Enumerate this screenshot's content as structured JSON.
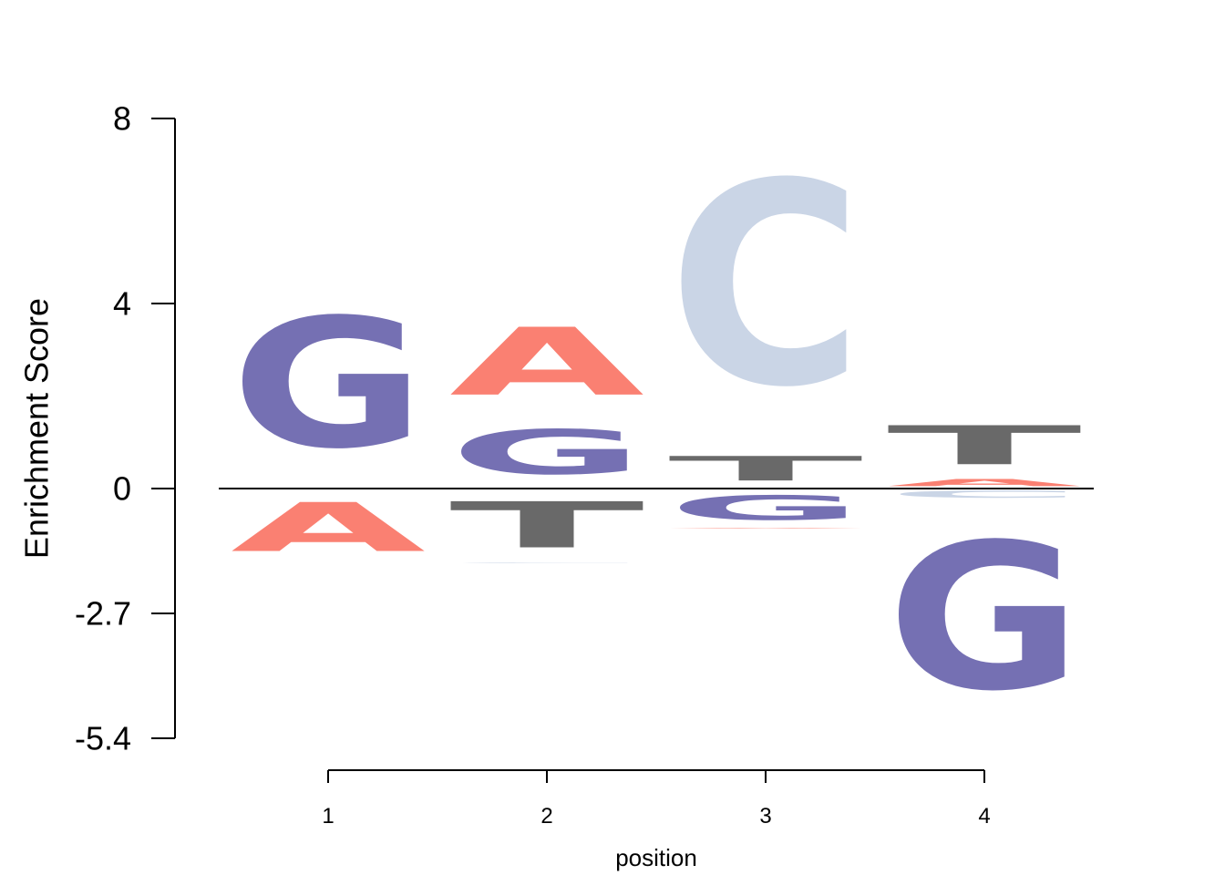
{
  "chart_data": {
    "type": "sequence-logo",
    "xlabel": "position",
    "ylabel": "Enrichment Score",
    "x_ticks": [
      "1",
      "2",
      "3",
      "4"
    ],
    "y_ticks": [
      {
        "value": 8,
        "label": "8"
      },
      {
        "value": 4,
        "label": "4"
      },
      {
        "value": 0,
        "label": "0"
      },
      {
        "value": -2.7,
        "label": "-2.7"
      },
      {
        "value": -5.4,
        "label": "-5.4"
      }
    ],
    "ylim": [
      -5.4,
      8
    ],
    "colors": {
      "A": "#FA8072",
      "C": "#CAD5E6",
      "G": "#7570B3",
      "T": "#696969"
    },
    "positions": [
      {
        "position": 1,
        "letters": [
          {
            "letter": "G",
            "value": 4.5
          },
          {
            "letter": "A",
            "value": -1.7
          }
        ]
      },
      {
        "position": 2,
        "letters": [
          {
            "letter": "A",
            "value": 3.9
          },
          {
            "letter": "G",
            "value": 1.55
          },
          {
            "letter": "T",
            "value": -1.6
          },
          {
            "letter": "C",
            "value": -1.6
          }
        ]
      },
      {
        "position": 3,
        "letters": [
          {
            "letter": "C",
            "value": 7.9
          },
          {
            "letter": "T",
            "value": 0.85
          },
          {
            "letter": "G",
            "value": -0.85
          },
          {
            "letter": "A",
            "value": -0.85
          }
        ]
      },
      {
        "position": 4,
        "letters": [
          {
            "letter": "T",
            "value": 1.6
          },
          {
            "letter": "A",
            "value": 0.25
          },
          {
            "letter": "C",
            "value": -0.25
          },
          {
            "letter": "G",
            "value": -5.35
          }
        ]
      }
    ]
  }
}
